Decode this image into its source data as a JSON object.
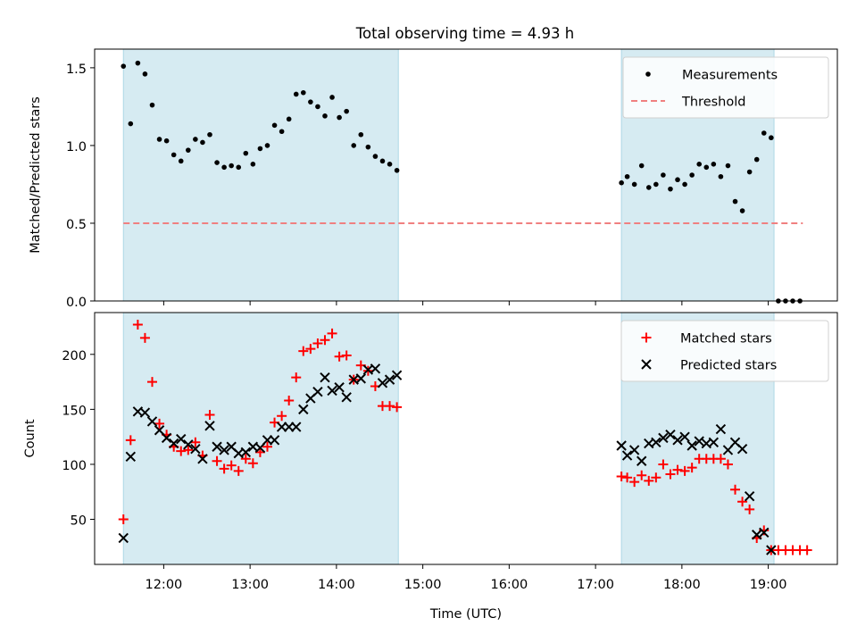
{
  "figure": {
    "title": "Total observing time = 4.93 h"
  },
  "chart_data": [
    {
      "type": "scatter",
      "ylabel": "Matched/Predicted stars",
      "xlim": [
        "11:12",
        "19:48"
      ],
      "ylim": [
        0,
        1.62
      ],
      "yticks": [
        0.0,
        0.5,
        1.0,
        1.5
      ],
      "ytick_labels": [
        "0.0",
        "0.5",
        "1.0",
        "1.5"
      ],
      "shaded_windows": [
        [
          "11:32",
          "14:43"
        ],
        [
          "17:18",
          "19:04"
        ]
      ],
      "shade_color": "#add8e6",
      "legend": {
        "placement": "top-right",
        "entries": [
          "Measurements",
          "Threshold"
        ]
      },
      "series": [
        {
          "name": "Measurements",
          "marker": "dot",
          "color": "#000000",
          "points": [
            [
              "11:32",
              1.51
            ],
            [
              "11:37",
              1.14
            ],
            [
              "11:42",
              1.53
            ],
            [
              "11:47",
              1.46
            ],
            [
              "11:52",
              1.26
            ],
            [
              "11:57",
              1.04
            ],
            [
              "12:02",
              1.03
            ],
            [
              "12:07",
              0.94
            ],
            [
              "12:12",
              0.9
            ],
            [
              "12:17",
              0.97
            ],
            [
              "12:22",
              1.04
            ],
            [
              "12:27",
              1.02
            ],
            [
              "12:32",
              1.07
            ],
            [
              "12:37",
              0.89
            ],
            [
              "12:42",
              0.86
            ],
            [
              "12:47",
              0.87
            ],
            [
              "12:52",
              0.86
            ],
            [
              "12:57",
              0.95
            ],
            [
              "13:02",
              0.88
            ],
            [
              "13:07",
              0.98
            ],
            [
              "13:12",
              1.0
            ],
            [
              "13:17",
              1.13
            ],
            [
              "13:22",
              1.09
            ],
            [
              "13:27",
              1.17
            ],
            [
              "13:32",
              1.33
            ],
            [
              "13:37",
              1.34
            ],
            [
              "13:42",
              1.28
            ],
            [
              "13:47",
              1.25
            ],
            [
              "13:52",
              1.19
            ],
            [
              "13:57",
              1.31
            ],
            [
              "14:02",
              1.18
            ],
            [
              "14:07",
              1.22
            ],
            [
              "14:12",
              1.0
            ],
            [
              "14:17",
              1.07
            ],
            [
              "14:22",
              0.99
            ],
            [
              "14:27",
              0.93
            ],
            [
              "14:32",
              0.9
            ],
            [
              "14:37",
              0.88
            ],
            [
              "14:42",
              0.84
            ],
            [
              "17:18",
              0.76
            ],
            [
              "17:22",
              0.8
            ],
            [
              "17:27",
              0.75
            ],
            [
              "17:32",
              0.87
            ],
            [
              "17:37",
              0.73
            ],
            [
              "17:42",
              0.75
            ],
            [
              "17:47",
              0.81
            ],
            [
              "17:52",
              0.72
            ],
            [
              "17:57",
              0.78
            ],
            [
              "18:02",
              0.75
            ],
            [
              "18:07",
              0.81
            ],
            [
              "18:12",
              0.88
            ],
            [
              "18:17",
              0.86
            ],
            [
              "18:22",
              0.88
            ],
            [
              "18:27",
              0.8
            ],
            [
              "18:32",
              0.87
            ],
            [
              "18:37",
              0.64
            ],
            [
              "18:42",
              0.58
            ],
            [
              "18:47",
              0.83
            ],
            [
              "18:52",
              0.91
            ],
            [
              "18:57",
              1.08
            ],
            [
              "19:02",
              1.05
            ],
            [
              "19:07",
              0.0
            ],
            [
              "19:12",
              0.0
            ],
            [
              "19:17",
              0.0
            ],
            [
              "19:22",
              0.0
            ]
          ]
        },
        {
          "name": "Threshold",
          "marker": "dashed-line",
          "color": "#f08080",
          "points": [
            [
              "11:32",
              0.5
            ],
            [
              "19:24",
              0.5
            ]
          ]
        }
      ]
    },
    {
      "type": "scatter",
      "xlabel": "Time (UTC)",
      "ylabel": "Count",
      "xlim": [
        "11:12",
        "19:48"
      ],
      "ylim": [
        9,
        238
      ],
      "yticks": [
        50,
        100,
        150,
        200
      ],
      "ytick_labels": [
        "50",
        "100",
        "150",
        "200"
      ],
      "xticks": [
        "12:00",
        "13:00",
        "14:00",
        "15:00",
        "16:00",
        "17:00",
        "18:00",
        "19:00"
      ],
      "shaded_windows": [
        [
          "11:32",
          "14:43"
        ],
        [
          "17:18",
          "19:04"
        ]
      ],
      "shade_color": "#add8e6",
      "legend": {
        "placement": "top-right",
        "entries": [
          "Matched stars",
          "Predicted stars"
        ]
      },
      "series": [
        {
          "name": "Matched stars",
          "marker": "plus",
          "color": "#ff0000",
          "points": [
            [
              "11:32",
              50
            ],
            [
              "11:37",
              122
            ],
            [
              "11:42",
              227
            ],
            [
              "11:47",
              215
            ],
            [
              "11:52",
              175
            ],
            [
              "11:57",
              137
            ],
            [
              "12:02",
              127
            ],
            [
              "12:07",
              116
            ],
            [
              "12:12",
              112
            ],
            [
              "12:17",
              113
            ],
            [
              "12:22",
              120
            ],
            [
              "12:27",
              108
            ],
            [
              "12:32",
              145
            ],
            [
              "12:37",
              103
            ],
            [
              "12:42",
              96
            ],
            [
              "12:47",
              99
            ],
            [
              "12:52",
              94
            ],
            [
              "12:57",
              105
            ],
            [
              "13:02",
              101
            ],
            [
              "13:07",
              111
            ],
            [
              "13:12",
              116
            ],
            [
              "13:17",
              138
            ],
            [
              "13:22",
              144
            ],
            [
              "13:27",
              158
            ],
            [
              "13:32",
              179
            ],
            [
              "13:37",
              203
            ],
            [
              "13:42",
              205
            ],
            [
              "13:47",
              210
            ],
            [
              "13:52",
              213
            ],
            [
              "13:57",
              219
            ],
            [
              "14:02",
              198
            ],
            [
              "14:07",
              199
            ],
            [
              "14:12",
              177
            ],
            [
              "14:17",
              190
            ],
            [
              "14:22",
              185
            ],
            [
              "14:27",
              171
            ],
            [
              "14:32",
              153
            ],
            [
              "14:37",
              153
            ],
            [
              "14:42",
              152
            ],
            [
              "17:18",
              89
            ],
            [
              "17:22",
              88
            ],
            [
              "17:27",
              84
            ],
            [
              "17:32",
              90
            ],
            [
              "17:37",
              85
            ],
            [
              "17:42",
              88
            ],
            [
              "17:47",
              100
            ],
            [
              "17:52",
              91
            ],
            [
              "17:57",
              95
            ],
            [
              "18:02",
              94
            ],
            [
              "18:07",
              97
            ],
            [
              "18:12",
              105
            ],
            [
              "18:17",
              105
            ],
            [
              "18:22",
              105
            ],
            [
              "18:27",
              105
            ],
            [
              "18:32",
              100
            ],
            [
              "18:37",
              77
            ],
            [
              "18:42",
              66
            ],
            [
              "18:47",
              59
            ],
            [
              "18:52",
              33
            ],
            [
              "18:57",
              40
            ],
            [
              "19:02",
              22
            ],
            [
              "19:07",
              22
            ],
            [
              "19:12",
              22
            ],
            [
              "19:17",
              22
            ],
            [
              "19:22",
              22
            ],
            [
              "19:27",
              22
            ]
          ]
        },
        {
          "name": "Predicted stars",
          "marker": "x",
          "color": "#000000",
          "points": [
            [
              "11:32",
              33
            ],
            [
              "11:37",
              107
            ],
            [
              "11:42",
              148
            ],
            [
              "11:47",
              147
            ],
            [
              "11:52",
              139
            ],
            [
              "11:57",
              131
            ],
            [
              "12:02",
              124
            ],
            [
              "12:07",
              119
            ],
            [
              "12:12",
              123
            ],
            [
              "12:17",
              118
            ],
            [
              "12:22",
              114
            ],
            [
              "12:27",
              105
            ],
            [
              "12:32",
              135
            ],
            [
              "12:37",
              116
            ],
            [
              "12:42",
              113
            ],
            [
              "12:47",
              116
            ],
            [
              "12:52",
              110
            ],
            [
              "12:57",
              111
            ],
            [
              "13:02",
              116
            ],
            [
              "13:07",
              115
            ],
            [
              "13:12",
              122
            ],
            [
              "13:17",
              122
            ],
            [
              "13:22",
              134
            ],
            [
              "13:27",
              134
            ],
            [
              "13:32",
              134
            ],
            [
              "13:37",
              150
            ],
            [
              "13:42",
              160
            ],
            [
              "13:47",
              166
            ],
            [
              "13:52",
              179
            ],
            [
              "13:57",
              167
            ],
            [
              "14:02",
              170
            ],
            [
              "14:07",
              161
            ],
            [
              "14:12",
              177
            ],
            [
              "14:17",
              178
            ],
            [
              "14:22",
              186
            ],
            [
              "14:27",
              187
            ],
            [
              "14:32",
              174
            ],
            [
              "14:37",
              177
            ],
            [
              "14:42",
              181
            ],
            [
              "17:18",
              117
            ],
            [
              "17:22",
              108
            ],
            [
              "17:27",
              113
            ],
            [
              "17:32",
              103
            ],
            [
              "17:37",
              119
            ],
            [
              "17:42",
              120
            ],
            [
              "17:47",
              124
            ],
            [
              "17:52",
              127
            ],
            [
              "17:57",
              122
            ],
            [
              "18:02",
              125
            ],
            [
              "18:07",
              117
            ],
            [
              "18:12",
              121
            ],
            [
              "18:17",
              119
            ],
            [
              "18:22",
              120
            ],
            [
              "18:27",
              132
            ],
            [
              "18:32",
              113
            ],
            [
              "18:37",
              120
            ],
            [
              "18:42",
              114
            ],
            [
              "18:47",
              71
            ],
            [
              "18:52",
              36
            ],
            [
              "18:57",
              38
            ],
            [
              "19:02",
              22
            ]
          ]
        }
      ]
    }
  ]
}
